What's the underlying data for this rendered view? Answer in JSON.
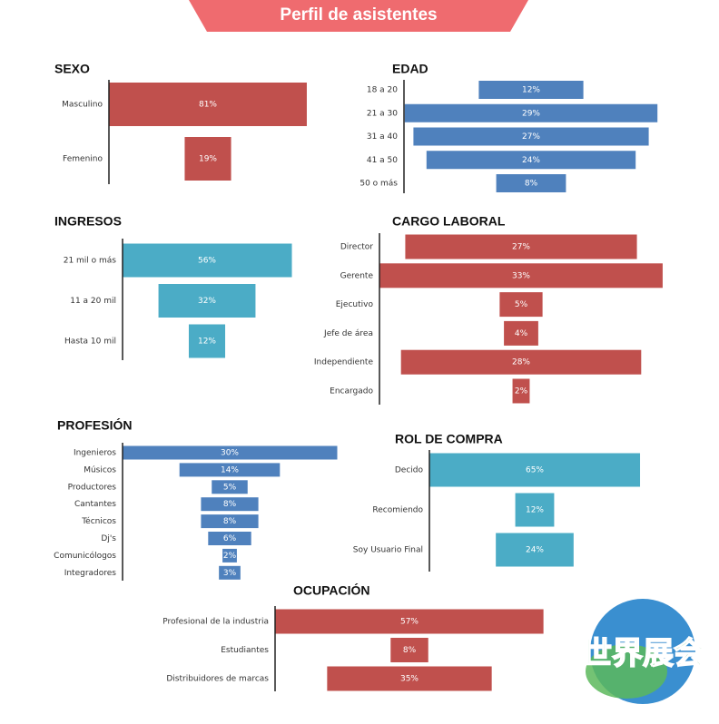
{
  "header": {
    "title": "Perfil de asistentes"
  },
  "watermark": "世界展会",
  "chart_data": [
    {
      "type": "funnel",
      "title": "SEXO",
      "color": "#c0504d",
      "categories": [
        "Masculino",
        "Femenino"
      ],
      "values": [
        81,
        19
      ],
      "value_labels": [
        "81%",
        "19%"
      ]
    },
    {
      "type": "funnel",
      "title": "EDAD",
      "color": "#4f81bd",
      "categories": [
        "18 a 20",
        "21 a 30",
        "31 a 40",
        "41 a 50",
        "50 o más"
      ],
      "values": [
        12,
        29,
        27,
        24,
        8
      ],
      "value_labels": [
        "12%",
        "29%",
        "27%",
        "24%",
        "8%"
      ]
    },
    {
      "type": "funnel",
      "title": "INGRESOS",
      "color": "#4bacc6",
      "categories": [
        "21 mil o más",
        "11 a 20 mil",
        "Hasta 10 mil"
      ],
      "values": [
        56,
        32,
        12
      ],
      "value_labels": [
        "56%",
        "32%",
        "12%"
      ]
    },
    {
      "type": "funnel",
      "title": "CARGO LABORAL",
      "color": "#c0504d",
      "categories": [
        "Director",
        "Gerente",
        "Ejecutivo",
        "Jefe de área",
        "Independiente",
        "Encargado"
      ],
      "values": [
        27,
        33,
        5,
        4,
        28,
        2
      ],
      "value_labels": [
        "27%",
        "33%",
        "5%",
        "4%",
        "28%",
        "2%"
      ]
    },
    {
      "type": "funnel",
      "title": "PROFESIÓN",
      "color": "#4f81bd",
      "categories": [
        "Ingenieros",
        "Músicos",
        "Productores",
        "Cantantes",
        "Técnicos",
        "Dj's",
        "Comunicólogos",
        "Integradores"
      ],
      "values": [
        30,
        14,
        5,
        8,
        8,
        6,
        2,
        3
      ],
      "value_labels": [
        "30%",
        "14%",
        "5%",
        "8%",
        "8%",
        "6%",
        "2%",
        "3%"
      ]
    },
    {
      "type": "funnel",
      "title": "ROL DE COMPRA",
      "color": "#4bacc6",
      "categories": [
        "Decido",
        "Recomiendo",
        "Soy Usuario Final"
      ],
      "values": [
        65,
        12,
        24
      ],
      "value_labels": [
        "65%",
        "12%",
        "24%"
      ]
    },
    {
      "type": "funnel",
      "title": "OCUPACIÓN",
      "color": "#c0504d",
      "categories": [
        "Profesional de la industria",
        "Estudiantes",
        "Distribuidores de marcas"
      ],
      "values": [
        57,
        8,
        35
      ],
      "value_labels": [
        "57%",
        "8%",
        "35%"
      ]
    }
  ]
}
